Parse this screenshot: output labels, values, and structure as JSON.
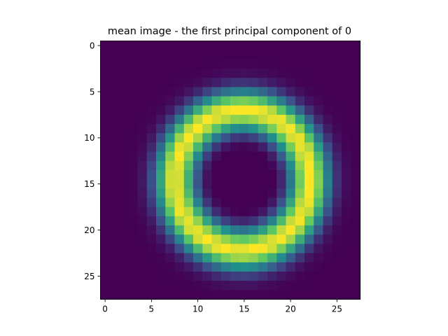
{
  "chart_data": {
    "type": "heatmap",
    "title": "mean image - the first principal component of 0",
    "xlabel": "",
    "ylabel": "",
    "rows": 28,
    "cols": 28,
    "xlim": [
      -0.5,
      27.5
    ],
    "ylim": [
      27.5,
      -0.5
    ],
    "xticks": [
      0,
      5,
      10,
      15,
      20,
      25
    ],
    "yticks": [
      0,
      5,
      10,
      15,
      20,
      25
    ],
    "colormap": "viridis",
    "grid": false,
    "background_color": "#440154",
    "peak_color": "#fde725",
    "pattern": "ring-shaped digit zero",
    "ring_model": {
      "center_col": 14.8,
      "center_row": 14.6,
      "radius_x": 7.2,
      "radius_y": 7.5,
      "thickness": 1.55,
      "peak_value": 1.0
    }
  }
}
